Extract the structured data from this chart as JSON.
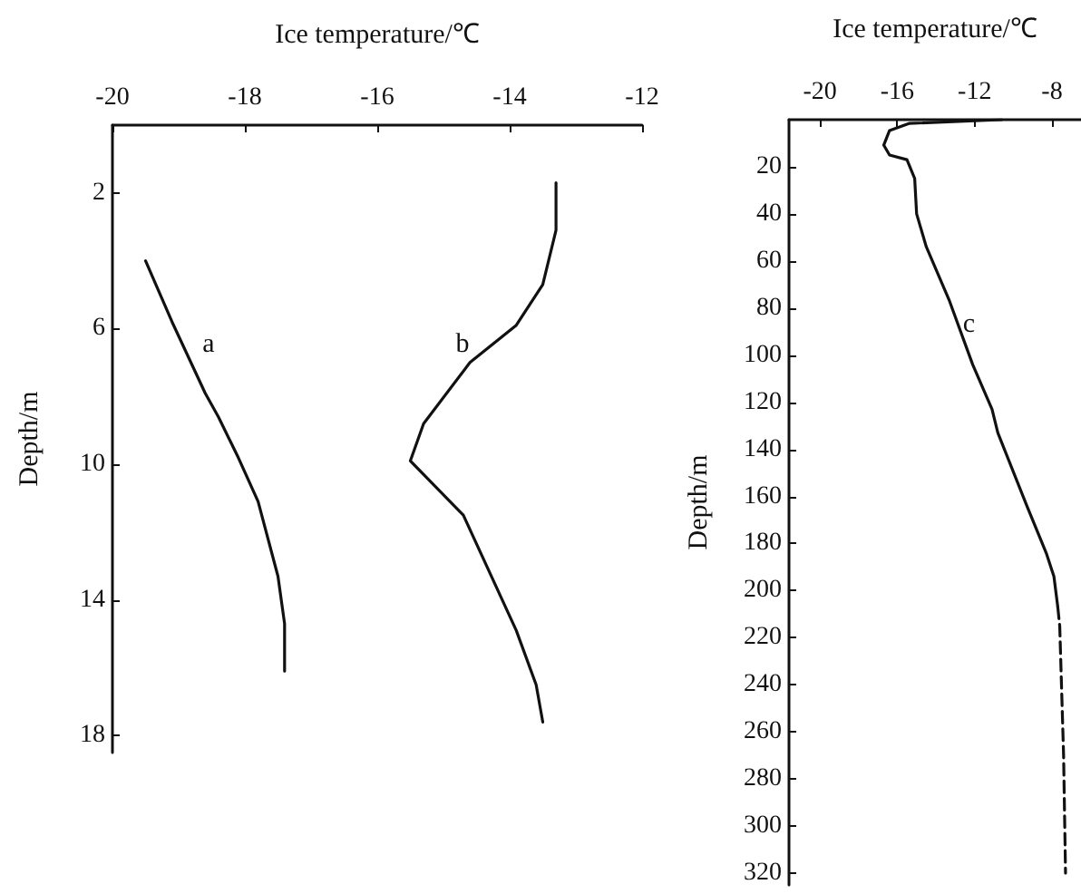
{
  "chart_data": [
    {
      "type": "line",
      "xlabel": "Ice temperature/℃",
      "ylabel": "Depth/m",
      "xlim": [
        -20,
        -12
      ],
      "xticks": [
        -20,
        -18,
        -16,
        -14,
        -12
      ],
      "ylim": [
        18.5,
        0
      ],
      "yticks": [
        2,
        6,
        10,
        14,
        18
      ],
      "grid": false,
      "marker": "none",
      "series": [
        {
          "color": "#111111",
          "line_style": "solid",
          "x": [
            -19.5,
            -19.1,
            -18.6,
            -18.4,
            -18.1,
            -17.8,
            -17.5,
            -17.4,
            -17.4
          ],
          "values": [
            4.0,
            5.8,
            7.9,
            8.6,
            9.8,
            11.1,
            13.3,
            14.7,
            16.1
          ]
        },
        {
          "color": "#111111",
          "line_style": "solid",
          "x": [
            -13.3,
            -13.3,
            -13.5,
            -13.9,
            -14.6,
            -15.3,
            -15.5,
            -14.7,
            -13.9,
            -13.6,
            -13.5
          ],
          "values": [
            1.7,
            3.1,
            4.7,
            5.9,
            7.0,
            8.8,
            9.9,
            11.5,
            14.9,
            16.5,
            17.6
          ]
        }
      ],
      "annotations": [
        "a",
        "b"
      ]
    },
    {
      "type": "line",
      "xlabel": "Ice temperature/℃",
      "ylabel": "Depth/m",
      "xlim": [
        -21.6,
        -6.5
      ],
      "xticks": [
        -20,
        -16,
        -12,
        -8
      ],
      "ylim": [
        325,
        0
      ],
      "yticks": [
        20,
        40,
        60,
        80,
        100,
        120,
        140,
        160,
        180,
        200,
        220,
        240,
        260,
        280,
        300,
        320
      ],
      "grid": false,
      "marker": "none",
      "series": [
        {
          "color": "#111111",
          "line_style": "solid",
          "x": [
            -10.6,
            -15.4,
            -16.4,
            -16.7,
            -16.4,
            -15.5,
            -15.1,
            -15.0,
            -14.5,
            -13.3,
            -12.1,
            -11.1,
            -10.8,
            -9.3,
            -8.3,
            -7.9,
            -7.7
          ],
          "values": [
            0,
            1.6,
            4.6,
            10.8,
            15,
            17,
            25,
            40,
            54,
            77,
            104,
            123,
            133,
            164,
            184,
            194,
            207
          ]
        },
        {
          "color": "#111111",
          "line_style": "dashed",
          "x": [
            -7.7,
            -7.6,
            -7.4,
            -7.3
          ],
          "values": [
            207,
            215,
            270,
            320
          ]
        }
      ],
      "annotations": [
        {
          "text": "c",
          "x": -12.3,
          "y": 87
        }
      ]
    }
  ]
}
